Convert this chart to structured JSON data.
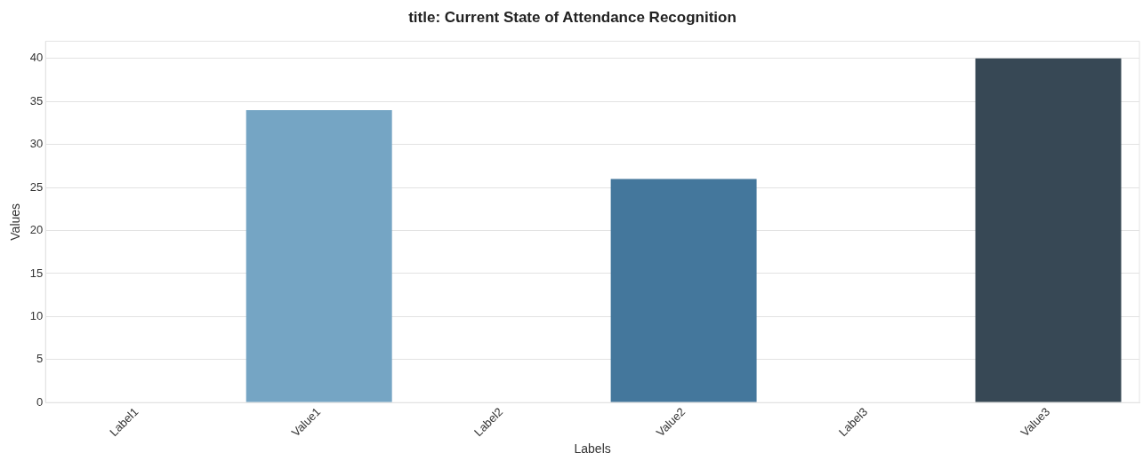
{
  "chart_data": {
    "type": "bar",
    "title": "title: Current State of Attendance Recognition",
    "xlabel": "Labels",
    "ylabel": "Values",
    "categories": [
      "Label1",
      "Value1",
      "Label2",
      "Value2",
      "Label3",
      "Value3"
    ],
    "values": [
      0,
      34,
      0,
      26,
      0,
      40
    ],
    "colors": [
      "#a9cce3",
      "#75a5c4",
      "#5a8fb3",
      "#44779c",
      "#3d5f79",
      "#374855"
    ],
    "ylim": [
      0,
      42
    ],
    "yticks": [
      0,
      5,
      10,
      15,
      20,
      25,
      30,
      35,
      40
    ],
    "grid": "y"
  }
}
